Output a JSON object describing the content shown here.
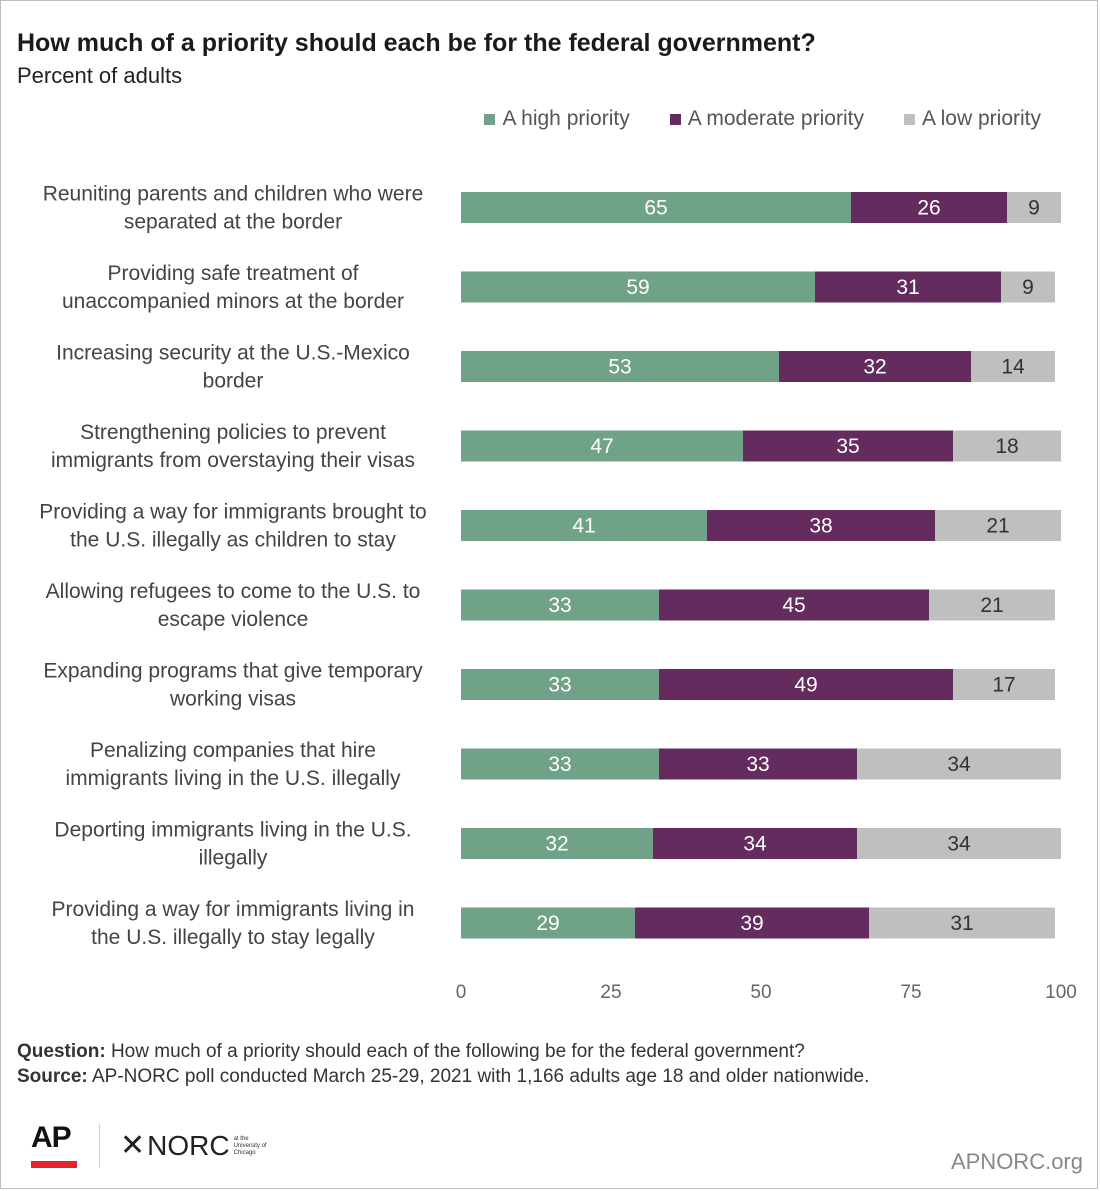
{
  "chart_data": {
    "type": "bar",
    "orientation": "horizontal",
    "stacked": true,
    "title": "How much of a priority should each be for the federal government?",
    "subtitle": "Percent of adults",
    "categories": [
      "Reuniting parents and children who were separated at the border",
      "Providing safe treatment of unaccompanied minors at the border",
      "Increasing security at the U.S.-Mexico border",
      "Strengthening policies to prevent immigrants from overstaying their visas",
      "Providing a way for immigrants brought to the U.S. illegally as children to stay",
      "Allowing refugees to come to the U.S. to escape violence",
      "Expanding programs that give temporary working visas",
      "Penalizing companies that hire immigrants living in the U.S. illegally",
      "Deporting immigrants living in the U.S. illegally",
      "Providing a way for immigrants living in the U.S. illegally to stay legally"
    ],
    "category_lines": [
      [
        "Reuniting parents and children who were",
        "separated at the border"
      ],
      [
        "Providing safe treatment of",
        "unaccompanied minors at the border"
      ],
      [
        "Increasing security at the U.S.-Mexico",
        "border"
      ],
      [
        "Strengthening policies to prevent",
        "immigrants from overstaying their visas"
      ],
      [
        "Providing a way for immigrants brought to",
        "the U.S. illegally as children to stay"
      ],
      [
        "Allowing refugees to come to the U.S. to",
        "escape violence"
      ],
      [
        "Expanding programs that give temporary",
        "working visas"
      ],
      [
        "Penalizing companies that hire",
        "immigrants living in the U.S. illegally"
      ],
      [
        "Deporting immigrants living in the U.S.",
        "illegally"
      ],
      [
        "Providing a way for immigrants living in",
        "the U.S. illegally to stay legally"
      ]
    ],
    "series": [
      {
        "name": "A high priority",
        "color": "#6fa287",
        "values": [
          65,
          59,
          53,
          47,
          41,
          33,
          33,
          33,
          32,
          29
        ]
      },
      {
        "name": "A moderate priority",
        "color": "#632b5e",
        "values": [
          26,
          31,
          32,
          35,
          38,
          45,
          49,
          33,
          34,
          39
        ]
      },
      {
        "name": "A low priority",
        "color": "#bfbfbf",
        "values": [
          9,
          9,
          14,
          18,
          21,
          21,
          17,
          34,
          34,
          31
        ]
      }
    ],
    "xlim": [
      0,
      100
    ],
    "xticks": [
      0,
      25,
      50,
      75,
      100
    ],
    "legend_position": "top-right",
    "grid": false
  },
  "footer": {
    "question_label": "Question:",
    "question_text": "How much of a priority should each of the following be for the federal government?",
    "source_label": "Source:",
    "source_text": "AP-NORC poll conducted March 25-29, 2021 with 1,166 adults age 18 and older nationwide."
  },
  "logos": {
    "ap": "AP",
    "norc_mark": "✕",
    "norc": "NORC",
    "norc_small": [
      "at the",
      "University of",
      "Chicago"
    ]
  },
  "site": "APNORC.org"
}
